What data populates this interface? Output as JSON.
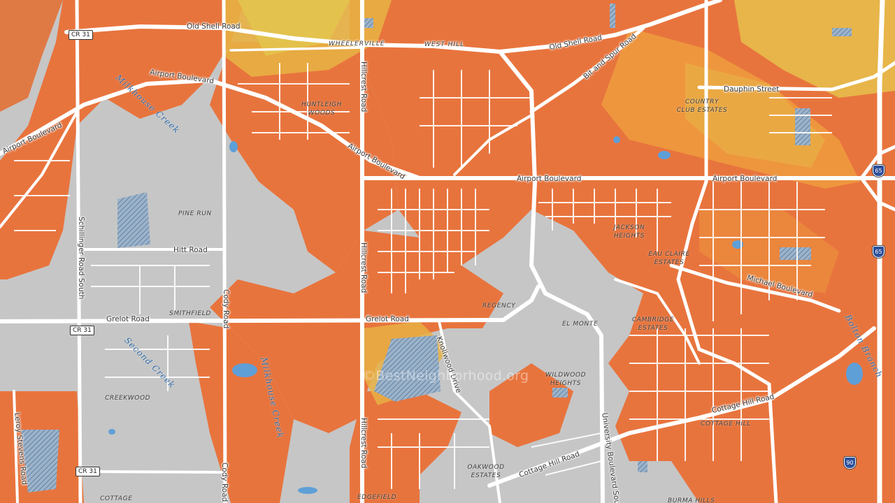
{
  "map": {
    "watermark": "©BestNeighborhood.org",
    "colors": {
      "base_gray": "#c9c9c9",
      "orange": "#e8743d",
      "orange_light": "#ee9a3e",
      "yellow": "#e8c341",
      "road": "#ffffff",
      "water": "#5f9fd8",
      "park_hatch": "#6a8fb6"
    },
    "road_labels": [
      {
        "id": "old-shell-road-west",
        "text": "Old Shell Road"
      },
      {
        "id": "wheelerville",
        "text": "WHEELERVILLE"
      },
      {
        "id": "west-hill",
        "text": "WEST HILL"
      },
      {
        "id": "old-shell-road-east",
        "text": "Old Shell Road"
      },
      {
        "id": "bit-and-spur-road",
        "text": "Bit and Spur Road"
      },
      {
        "id": "airport-boulevard-nw",
        "text": "Airport Boulevard"
      },
      {
        "id": "airport-boulevard-west",
        "text": "Airport Boulevard"
      },
      {
        "id": "airport-boulevard-diag",
        "text": "Airport Boulevard"
      },
      {
        "id": "airport-boulevard-mid",
        "text": "Airport Boulevard"
      },
      {
        "id": "airport-boulevard-east",
        "text": "Airport Boulevard"
      },
      {
        "id": "dauphin-street",
        "text": "Dauphin Street"
      },
      {
        "id": "hillcrest-road-north",
        "text": "Hillcrest Road"
      },
      {
        "id": "hillcrest-road-mid",
        "text": "Hillcrest Road"
      },
      {
        "id": "hillcrest-road-south",
        "text": "Hillcrest Road"
      },
      {
        "id": "schillinger-road-south",
        "text": "Schillinger Road South"
      },
      {
        "id": "hitt-road",
        "text": "Hitt Road"
      },
      {
        "id": "cody-road",
        "text": "Cody Road"
      },
      {
        "id": "cody-road-south",
        "text": "Cody Road"
      },
      {
        "id": "grelot-road-west",
        "text": "Grelot Road"
      },
      {
        "id": "grelot-road-mid",
        "text": "Grelot Road"
      },
      {
        "id": "knollwood-drive",
        "text": "Knollwood Drive"
      },
      {
        "id": "michael-boulevard",
        "text": "Michael Boulevard"
      },
      {
        "id": "cottage-hill-road-east",
        "text": "Cottage Hill Road"
      },
      {
        "id": "cottage-hill-road-west",
        "text": "Cottage Hill Road"
      },
      {
        "id": "university-boulevard-south",
        "text": "University Boulevard South"
      },
      {
        "id": "leroy-stevens-road",
        "text": "Leroy Stevens Road"
      }
    ],
    "neighborhood_labels": [
      {
        "id": "huntleigh-woods",
        "text": "HUNTLEIGH\nWOODS"
      },
      {
        "id": "country-club-estates",
        "text": "COUNTRY\nCLUB ESTATES"
      },
      {
        "id": "pine-run",
        "text": "PINE RUN"
      },
      {
        "id": "jackson-heights",
        "text": "JACKSON\nHEIGHTS"
      },
      {
        "id": "eau-claire-estates",
        "text": "EAU CLAIRE\nESTATES"
      },
      {
        "id": "regency",
        "text": "REGENCY"
      },
      {
        "id": "el-monte",
        "text": "EL MONTE"
      },
      {
        "id": "cambridge-estates",
        "text": "CAMBRIDGE\nESTATES"
      },
      {
        "id": "smithfield",
        "text": "SMITHFIELD"
      },
      {
        "id": "wildwood-heights",
        "text": "WILDWOOD\nHEIGHTS"
      },
      {
        "id": "creekwood",
        "text": "CREEKWOOD"
      },
      {
        "id": "cottage-hill",
        "text": "COTTAGE HILL"
      },
      {
        "id": "oakwood-estates",
        "text": "OAKWOOD\nESTATES"
      },
      {
        "id": "edgefield",
        "text": "EDGEFIELD"
      },
      {
        "id": "cottage-sw",
        "text": "COTTAGE"
      },
      {
        "id": "burma-hills",
        "text": "BURMA HILLS"
      }
    ],
    "water_labels": [
      {
        "id": "milkhouse-creek-north",
        "text": "Milkhouse Creek"
      },
      {
        "id": "milkhouse-creek-south",
        "text": "Milkhouse Creek"
      },
      {
        "id": "second-creek",
        "text": "Second Creek"
      },
      {
        "id": "bolton-branch",
        "text": "Bolton Branch"
      }
    ],
    "shields": [
      {
        "id": "cr31-north",
        "text": "CR 31"
      },
      {
        "id": "cr31-mid",
        "text": "CR 31"
      },
      {
        "id": "cr31-south",
        "text": "CR 31"
      },
      {
        "id": "i65-north",
        "text": "65"
      },
      {
        "id": "i65-south",
        "text": "65"
      },
      {
        "id": "i90",
        "text": "90"
      }
    ]
  }
}
